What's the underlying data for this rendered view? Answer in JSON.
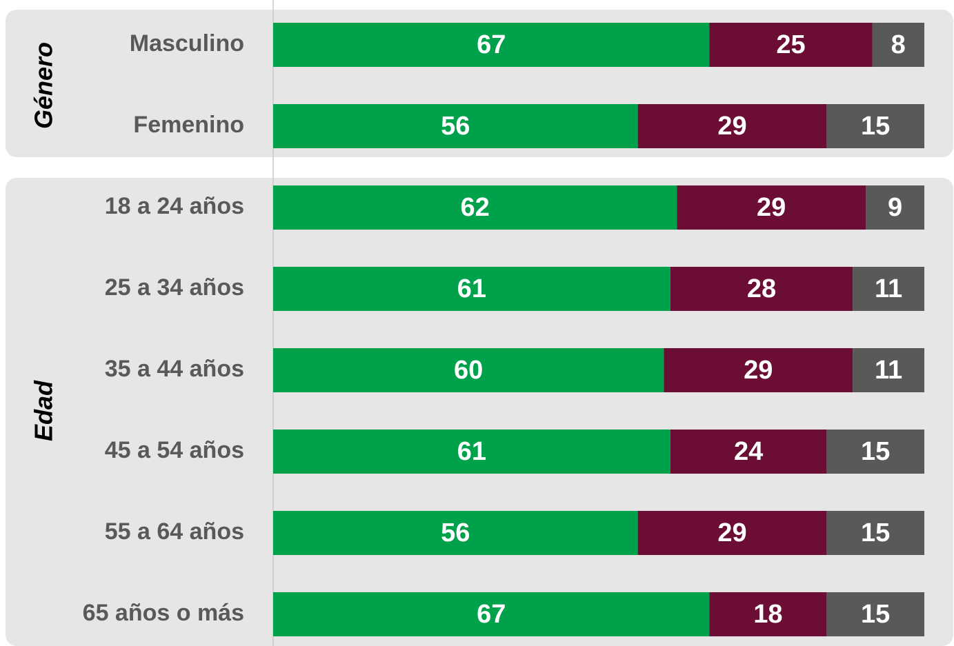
{
  "chart_data": [
    {
      "type": "bar",
      "orientation": "horizontal",
      "stacked": true,
      "title": "Género",
      "categories": [
        "Masculino",
        "Femenino"
      ],
      "series": [
        {
          "color": "#00a14b",
          "values": [
            67,
            56
          ]
        },
        {
          "color": "#6b0d34",
          "values": [
            25,
            29
          ]
        },
        {
          "color": "#595959",
          "values": [
            8,
            15
          ]
        }
      ],
      "xlim": [
        0,
        100
      ]
    },
    {
      "type": "bar",
      "orientation": "horizontal",
      "stacked": true,
      "title": "Edad",
      "categories": [
        "18 a 24 años",
        "25 a 34 años",
        "35 a 44 años",
        "45 a 54 años",
        "55 a 64 años",
        "65 años o más"
      ],
      "series": [
        {
          "color": "#00a14b",
          "values": [
            62,
            61,
            60,
            61,
            56,
            67
          ]
        },
        {
          "color": "#6b0d34",
          "values": [
            29,
            28,
            29,
            24,
            29,
            18
          ]
        },
        {
          "color": "#595959",
          "values": [
            9,
            11,
            11,
            15,
            15,
            15
          ]
        }
      ],
      "xlim": [
        0,
        100
      ]
    }
  ]
}
